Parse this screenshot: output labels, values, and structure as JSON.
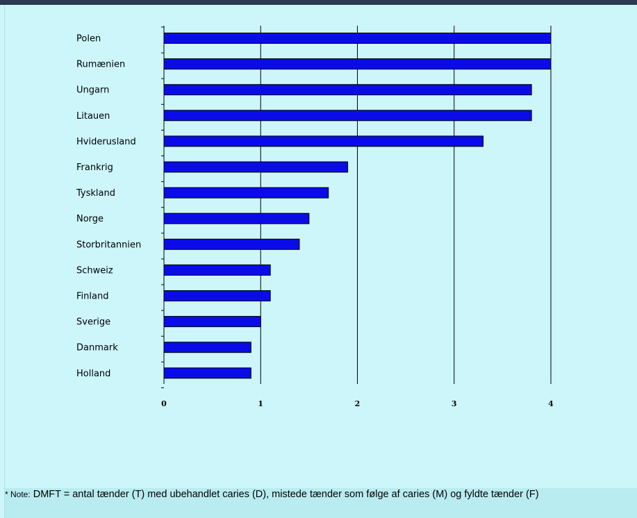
{
  "note": {
    "prefix": "* Note:",
    "text": "DMFT = antal tænder (T) med ubehandlet caries (D), mistede tænder som følge af caries (M) og fyldte tænder (F)"
  },
  "colors": {
    "bar": "#0a0ce8",
    "background": "#ccf6fa",
    "note_background": "#b9ecf0"
  },
  "chart_data": {
    "type": "bar",
    "orientation": "horizontal",
    "categories": [
      "Polen",
      "Rumænien",
      "Ungarn",
      "Litauen",
      "Hviderusland",
      "Frankrig",
      "Tyskland",
      "Norge",
      "Storbritannien",
      "Schweiz",
      "Finland",
      "Sverige",
      "Danmark",
      "Holland"
    ],
    "values": [
      4.0,
      4.0,
      3.8,
      3.8,
      3.3,
      1.9,
      1.7,
      1.5,
      1.4,
      1.1,
      1.1,
      1.0,
      0.9,
      0.9
    ],
    "xlim": [
      0,
      4
    ],
    "xticks": [
      "0",
      "1",
      "2",
      "3",
      "4"
    ],
    "grid": "vertical",
    "title": "",
    "xlabel": "",
    "ylabel": ""
  }
}
